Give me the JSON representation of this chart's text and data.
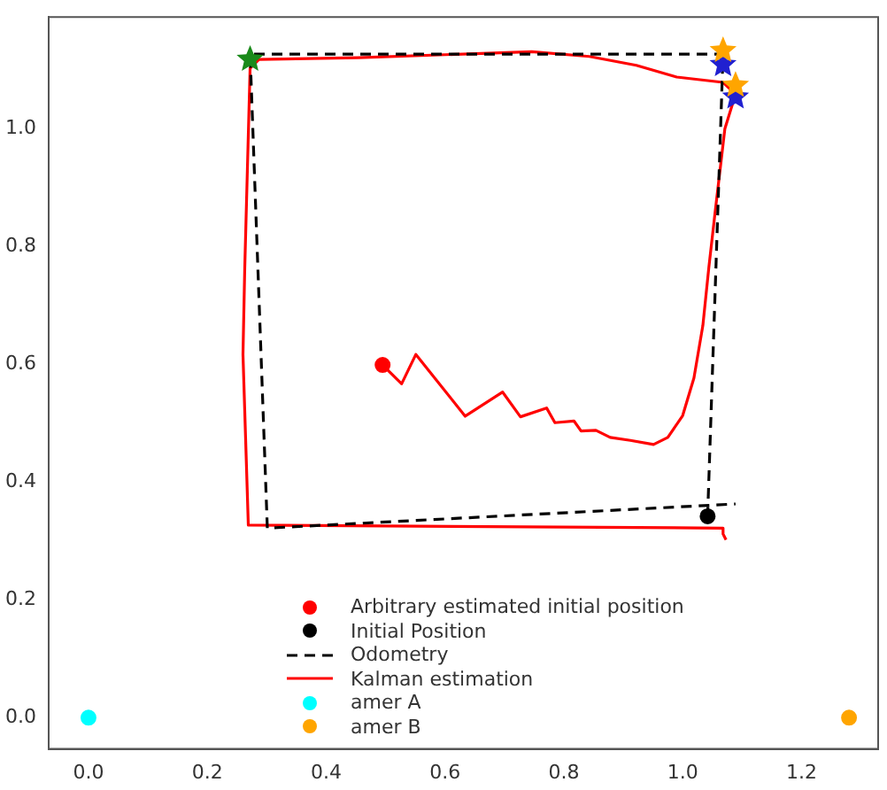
{
  "chart_data": {
    "type": "scatter",
    "legend": "bottom",
    "grid": false,
    "xlim": [
      -0.067,
      1.329
    ],
    "ylim": [
      -0.053,
      1.19
    ],
    "xticks": [
      {
        "value": 0,
        "label": "0.0"
      },
      {
        "value": 0.2,
        "label": "0.2"
      },
      {
        "value": 0.4,
        "label": "0.4"
      },
      {
        "value": 0.6,
        "label": "0.6"
      },
      {
        "value": 0.8,
        "label": "0.8"
      },
      {
        "value": 1.0,
        "label": "1.0"
      },
      {
        "value": 1.2,
        "label": "1.2"
      }
    ],
    "yticks": [
      {
        "value": 0,
        "label": "0.0"
      },
      {
        "value": 0.2,
        "label": "0.2"
      },
      {
        "value": 0.4,
        "label": "0.4"
      },
      {
        "value": 0.6,
        "label": "0.6"
      },
      {
        "value": 0.8,
        "label": "0.8"
      },
      {
        "value": 1.0,
        "label": "1.0"
      }
    ],
    "series": [
      {
        "name": "Arbitrary estimated initial position",
        "type": "scatter",
        "marker": "circle",
        "color": "#ff0000",
        "x": [
          0.495
        ],
        "values": [
          0.599
        ]
      },
      {
        "name": "Initial Position",
        "type": "scatter",
        "marker": "circle",
        "color": "#000000",
        "x": [
          1.042
        ],
        "values": [
          0.342
        ]
      },
      {
        "name": "Odometry",
        "type": "line",
        "marker": "none",
        "line_style": "dashed",
        "color": "#000000",
        "x": [
          1.042,
          1.068,
          0.272,
          0.301,
          1.089
        ],
        "values": [
          0.342,
          1.127,
          1.127,
          0.322,
          0.363
        ]
      },
      {
        "name": "Kalman estimation",
        "type": "line",
        "marker": "none",
        "line_style": "solid",
        "color": "#ff0000",
        "x": [
          0.495,
          0.527,
          0.551,
          0.634,
          0.697,
          0.727,
          0.771,
          0.785,
          0.817,
          0.829,
          0.854,
          0.878,
          0.912,
          0.951,
          0.975,
          1.0,
          1.019,
          1.034,
          1.044,
          1.054,
          1.071,
          1.089,
          1.068,
          0.99,
          0.922,
          0.843,
          0.746,
          0.6,
          0.454,
          0.287,
          0.272,
          0.263,
          0.26,
          0.269,
          1.068,
          1.068,
          1.073
        ],
        "values": [
          0.599,
          0.567,
          0.617,
          0.512,
          0.553,
          0.511,
          0.526,
          0.501,
          0.504,
          0.487,
          0.488,
          0.476,
          0.471,
          0.464,
          0.476,
          0.513,
          0.577,
          0.666,
          0.764,
          0.853,
          1.0,
          1.059,
          1.079,
          1.088,
          1.108,
          1.123,
          1.131,
          1.126,
          1.121,
          1.118,
          1.103,
          0.764,
          0.617,
          0.327,
          0.322,
          0.312,
          0.302
        ]
      },
      {
        "name": "amer A",
        "type": "scatter",
        "marker": "circle",
        "color": "#00ffff",
        "x": [
          0
        ],
        "values": [
          0
        ]
      },
      {
        "name": "amer B",
        "type": "scatter",
        "marker": "circle",
        "color": "#ffa500",
        "x": [
          1.28
        ],
        "values": [
          0
        ]
      },
      {
        "type": "scatter",
        "marker": "star",
        "color": "#1a8a1a",
        "x": [
          0.272
        ],
        "values": [
          1.118
        ]
      },
      {
        "type": "scatter",
        "marker": "star",
        "color": "#2020d0",
        "x": [
          1.068,
          1.089
        ],
        "values": [
          1.109,
          1.054
        ]
      },
      {
        "type": "scatter",
        "marker": "star",
        "color": "#ffa500",
        "x": [
          1.068,
          1.089
        ],
        "values": [
          1.133,
          1.074
        ]
      }
    ]
  }
}
